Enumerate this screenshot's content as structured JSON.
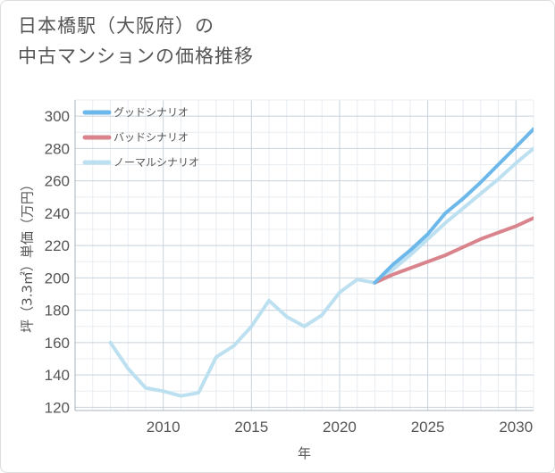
{
  "chart_data": {
    "type": "line",
    "title": "日本橋駅（大阪府）の中古マンションの価格推移",
    "title_lines": [
      "日本橋駅（大阪府）の",
      "中古マンションの価格推移"
    ],
    "xlabel": "年",
    "ylabel": "坪（3.3㎡）単価（万円）",
    "xlim": [
      2005,
      2031
    ],
    "ylim": [
      118,
      310
    ],
    "xticks": [
      2010,
      2015,
      2020,
      2025,
      2030
    ],
    "yticks": [
      120,
      140,
      160,
      180,
      200,
      220,
      240,
      260,
      280,
      300
    ],
    "legend_position": "top-left",
    "series": [
      {
        "name": "グッドシナリオ",
        "color": "#6cb8ea",
        "points": [
          [
            2022,
            197
          ],
          [
            2023,
            208
          ],
          [
            2024,
            217
          ],
          [
            2025,
            227
          ],
          [
            2026,
            240
          ],
          [
            2027,
            249
          ],
          [
            2028,
            259
          ],
          [
            2029,
            270
          ],
          [
            2030,
            281
          ],
          [
            2031,
            292
          ]
        ]
      },
      {
        "name": "バッドシナリオ",
        "color": "#d9848c",
        "points": [
          [
            2022,
            197
          ],
          [
            2023,
            202
          ],
          [
            2024,
            206
          ],
          [
            2025,
            210
          ],
          [
            2026,
            214
          ],
          [
            2027,
            219
          ],
          [
            2028,
            224
          ],
          [
            2029,
            228
          ],
          [
            2030,
            232
          ],
          [
            2031,
            237
          ]
        ]
      },
      {
        "name": "ノーマルシナリオ",
        "color": "#bde0f0",
        "points": [
          [
            2007,
            160
          ],
          [
            2008,
            144
          ],
          [
            2009,
            132
          ],
          [
            2010,
            130
          ],
          [
            2011,
            127
          ],
          [
            2012,
            129
          ],
          [
            2013,
            151
          ],
          [
            2014,
            158
          ],
          [
            2015,
            170
          ],
          [
            2016,
            186
          ],
          [
            2017,
            176
          ],
          [
            2018,
            170
          ],
          [
            2019,
            177
          ],
          [
            2020,
            191
          ],
          [
            2021,
            199
          ],
          [
            2022,
            197
          ],
          [
            2023,
            205
          ],
          [
            2024,
            214
          ],
          [
            2025,
            224
          ],
          [
            2026,
            234
          ],
          [
            2027,
            243
          ],
          [
            2028,
            252
          ],
          [
            2029,
            261
          ],
          [
            2030,
            271
          ],
          [
            2031,
            280
          ]
        ]
      }
    ]
  }
}
